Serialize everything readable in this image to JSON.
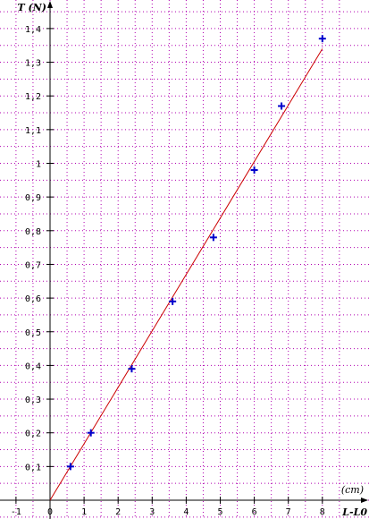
{
  "chart_data": {
    "type": "scatter",
    "title": "",
    "xlabel": "L-L0",
    "xunit": "(cm)",
    "ylabel": "T (N)",
    "xlim": [
      -1.5,
      8.5
    ],
    "ylim": [
      -0.05,
      1.45
    ],
    "grid": true,
    "x_ticks": [
      -1,
      0,
      1,
      2,
      3,
      4,
      5,
      6,
      7,
      8
    ],
    "x_tick_labels": [
      "-1",
      "0",
      "1",
      "2",
      "3",
      "4",
      "5",
      "6",
      "7",
      "8"
    ],
    "y_ticks": [
      0.1,
      0.2,
      0.3,
      0.4,
      0.5,
      0.6,
      0.7,
      0.8,
      0.9,
      1.0,
      1.1,
      1.2,
      1.3,
      1.4
    ],
    "y_tick_labels": [
      "0,1",
      "0,2",
      "0,3",
      "0,4",
      "0,5",
      "0,6",
      "0,7",
      "0,8",
      "0,9",
      "1",
      "1,1",
      "1,2",
      "1,3",
      "1,4"
    ],
    "series": [
      {
        "marker": "+",
        "color": "#0000cc",
        "x": [
          0.6,
          1.2,
          2.4,
          3.6,
          4.8,
          6.0,
          6.8,
          8.0
        ],
        "y": [
          0.1,
          0.2,
          0.39,
          0.59,
          0.78,
          0.98,
          1.17,
          1.37
        ]
      }
    ],
    "fit_line": {
      "color": "#cc0000",
      "x": [
        0,
        8
      ],
      "y": [
        0,
        1.34
      ]
    },
    "colors": {
      "grid": "#b000b0",
      "axis": "#000000"
    }
  }
}
